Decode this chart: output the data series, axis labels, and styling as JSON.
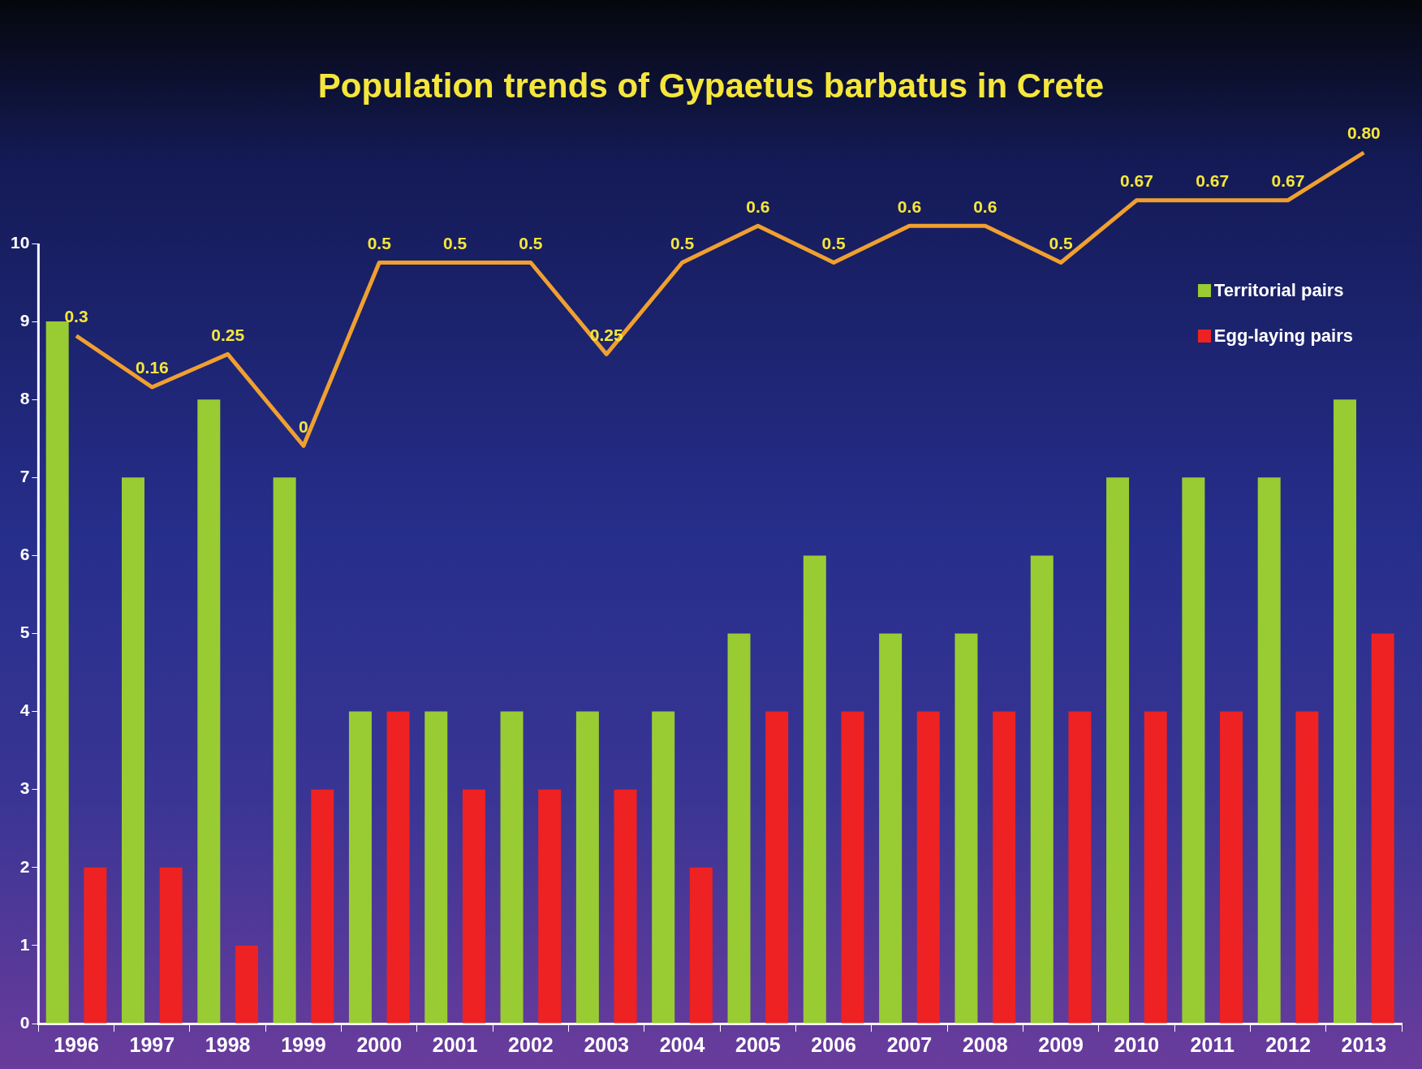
{
  "chart_data": {
    "type": "bar",
    "title": "Population trends of Gypaetus barbatus in Crete",
    "categories": [
      "1996",
      "1997",
      "1998",
      "1999",
      "2000",
      "2001",
      "2002",
      "2003",
      "2004",
      "2005",
      "2006",
      "2007",
      "2008",
      "2009",
      "2010",
      "2011",
      "2012",
      "2013"
    ],
    "series": [
      {
        "name": "Territorial pairs",
        "color": "#99cc33",
        "values": [
          9,
          7,
          8,
          7,
          4,
          4,
          4,
          4,
          4,
          5,
          6,
          5,
          5,
          6,
          7,
          7,
          7,
          8
        ]
      },
      {
        "name": "Egg-laying pairs",
        "color": "#ee2222",
        "values": [
          2,
          2,
          1,
          3,
          4,
          3,
          3,
          3,
          2,
          4,
          4,
          4,
          4,
          4,
          4,
          4,
          4,
          5
        ]
      },
      {
        "type": "line",
        "axis": "y2",
        "color": "#f0a030",
        "data_labels": true,
        "values": [
          0.3,
          0.16,
          0.25,
          0,
          0.5,
          0.5,
          0.5,
          0.25,
          0.5,
          0.6,
          0.5,
          0.6,
          0.6,
          0.5,
          0.67,
          0.67,
          0.67,
          0.8
        ],
        "value_labels": [
          "0.3",
          "0.16",
          "0.25",
          "0",
          "0.5",
          "0.5",
          "0.5",
          "0.25",
          "0.5",
          "0.6",
          "0.5",
          "0.6",
          "0.6",
          "0.5",
          "0.67",
          "0.67",
          "0.67",
          "0.80"
        ]
      }
    ],
    "ylim": [
      0,
      10
    ],
    "yticks": [
      0,
      1,
      2,
      3,
      4,
      5,
      6,
      7,
      8,
      9,
      10
    ],
    "grid": false,
    "legend": "top right",
    "tick_labels": "xy"
  }
}
